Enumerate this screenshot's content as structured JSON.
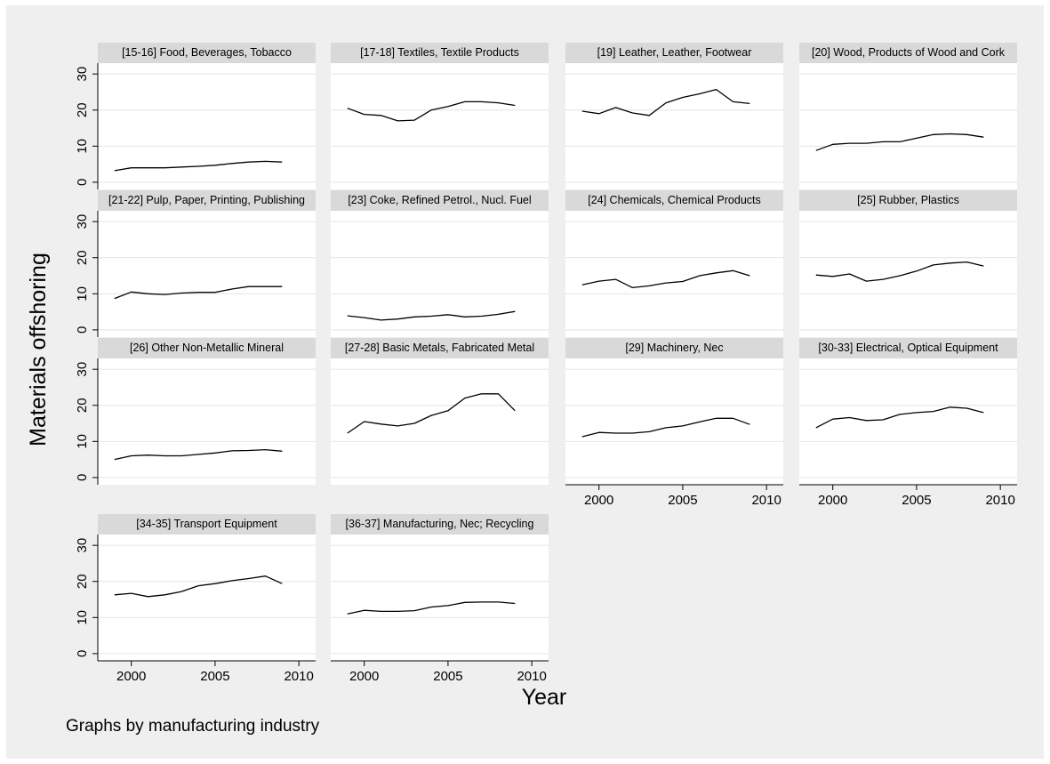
{
  "chart_data": {
    "type": "line",
    "ylabel": "Materials offshoring",
    "xlabel": "Year",
    "note": "Graphs by manufacturing industry",
    "xlim": [
      1998,
      2011
    ],
    "ylim": [
      -2,
      33
    ],
    "x_ticks": [
      2000,
      2005,
      2010
    ],
    "y_ticks": [
      0,
      10,
      20,
      30
    ],
    "grid": true,
    "colors": {
      "outer_bg": "#efefef",
      "plot_bg": "#ffffff",
      "header_bg": "#d9d9d9",
      "line": "#000000",
      "grid": "#e4e4e4"
    },
    "x": [
      1999,
      2000,
      2001,
      2002,
      2003,
      2004,
      2005,
      2006,
      2007,
      2008,
      2009
    ],
    "panels": [
      {
        "title": "[15-16] Food, Beverages, Tobacco",
        "values": [
          3.2,
          4.0,
          4.0,
          4.0,
          4.2,
          4.4,
          4.7,
          5.2,
          5.6,
          5.8,
          5.6
        ]
      },
      {
        "title": "[17-18] Textiles, Textile Products",
        "values": [
          20.5,
          18.8,
          18.5,
          17.0,
          17.2,
          20.0,
          21.0,
          22.3,
          22.3,
          22.0,
          21.3
        ]
      },
      {
        "title": "[19] Leather, Leather, Footwear",
        "values": [
          19.7,
          19.0,
          20.7,
          19.2,
          18.5,
          22.0,
          23.5,
          24.5,
          25.7,
          22.3,
          21.8
        ]
      },
      {
        "title": "[20] Wood, Products of Wood and Cork",
        "values": [
          8.8,
          10.5,
          10.8,
          10.8,
          11.2,
          11.2,
          12.2,
          13.2,
          13.4,
          13.2,
          12.5
        ]
      },
      {
        "title": "[21-22] Pulp, Paper, Printing, Publishing",
        "values": [
          8.7,
          10.5,
          10.0,
          9.8,
          10.2,
          10.4,
          10.4,
          11.3,
          12.0,
          12.0,
          12.0
        ]
      },
      {
        "title": "[23] Coke, Refined Petrol., Nucl. Fuel",
        "values": [
          3.9,
          3.4,
          2.7,
          3.0,
          3.6,
          3.8,
          4.2,
          3.6,
          3.8,
          4.3,
          5.1
        ]
      },
      {
        "title": "[24] Chemicals, Chemical Products",
        "values": [
          12.5,
          13.5,
          14.0,
          11.7,
          12.2,
          13.0,
          13.4,
          15.0,
          15.8,
          16.4,
          15.0
        ]
      },
      {
        "title": "[25] Rubber, Plastics",
        "values": [
          15.2,
          14.8,
          15.5,
          13.5,
          14.0,
          15.0,
          16.3,
          18.0,
          18.5,
          18.8,
          17.7
        ]
      },
      {
        "title": "[26] Other Non-Metallic Mineral",
        "values": [
          5.0,
          6.0,
          6.2,
          6.0,
          6.0,
          6.4,
          6.8,
          7.4,
          7.5,
          7.7,
          7.3
        ]
      },
      {
        "title": "[27-28] Basic Metals, Fabricated Metal",
        "values": [
          12.3,
          15.5,
          14.8,
          14.3,
          15.0,
          17.2,
          18.5,
          22.0,
          23.2,
          23.2,
          18.5
        ]
      },
      {
        "title": "[29] Machinery, Nec",
        "values": [
          11.3,
          12.5,
          12.3,
          12.3,
          12.7,
          13.8,
          14.3,
          15.4,
          16.4,
          16.4,
          14.7
        ]
      },
      {
        "title": "[30-33] Electrical, Optical Equipment",
        "values": [
          13.8,
          16.2,
          16.6,
          15.8,
          16.0,
          17.5,
          18.0,
          18.3,
          19.5,
          19.2,
          18.0
        ]
      },
      {
        "title": "[34-35] Transport Equipment",
        "values": [
          16.3,
          16.7,
          15.8,
          16.3,
          17.2,
          18.8,
          19.4,
          20.2,
          20.8,
          21.5,
          19.4
        ]
      },
      {
        "title": "[36-37] Manufacturing, Nec; Recycling",
        "values": [
          11.0,
          12.0,
          11.7,
          11.7,
          11.9,
          12.9,
          13.3,
          14.2,
          14.3,
          14.3,
          13.9
        ]
      }
    ]
  }
}
